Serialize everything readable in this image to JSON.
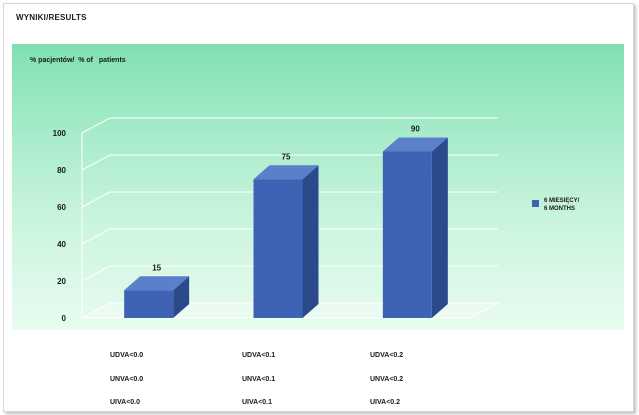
{
  "page": {
    "title": "WYNIKI/RESULTS"
  },
  "chart_data": {
    "type": "bar",
    "ylabel": "% pacjentów/  % of   patients",
    "categories": [
      "UDVA<0.0",
      "UDVA<0.1",
      "UDVA<0.2"
    ],
    "series": [
      {
        "name": "6 MIESIĘCY/\n6 MONTHS",
        "values": [
          15,
          75,
          90
        ]
      }
    ],
    "data_labels": [
      "15",
      "75",
      "90"
    ],
    "ylim": [
      0,
      100
    ],
    "yticks": [
      0,
      20,
      40,
      60,
      80,
      100
    ],
    "ytick_labels": [
      "0",
      "20",
      "40",
      "60",
      "80",
      "100"
    ],
    "grid": true,
    "legend_position": "right",
    "bar_color": "#3f63b4",
    "bar_side_color": "#2b4a8c",
    "bar_top_color": "#5a7fcb",
    "background_top_color": "#7fe0b2",
    "background_bottom_color": "#e9fbf0"
  },
  "conditions": [
    [
      "UDVA<0.0",
      "UDVA<0.1",
      "UDVA<0.2"
    ],
    [
      "UNVA<0.0",
      "UNVA<0.1",
      "UNVA<0.2"
    ],
    [
      "UIVA<0.0",
      "UIVA<0.1",
      "UIVA<0.2"
    ]
  ]
}
